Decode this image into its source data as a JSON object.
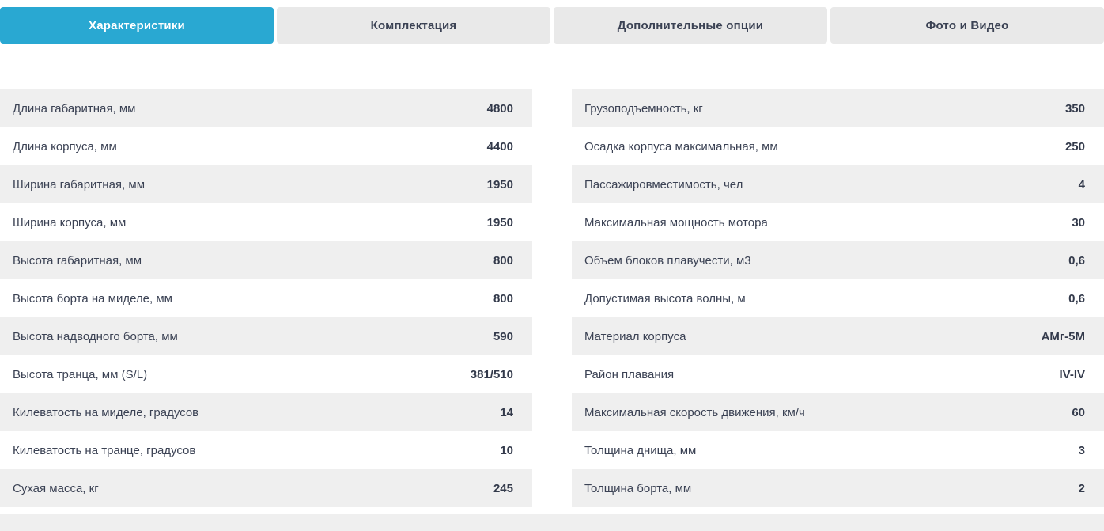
{
  "tabs": [
    {
      "label": "Характеристики",
      "active": true
    },
    {
      "label": "Комплектация",
      "active": false
    },
    {
      "label": "Дополнительные опции",
      "active": false
    },
    {
      "label": "Фото и Видео",
      "active": false
    }
  ],
  "specs": {
    "left": [
      {
        "label": "Длина габаритная, мм",
        "value": "4800"
      },
      {
        "label": "Длина корпуса, мм",
        "value": "4400"
      },
      {
        "label": "Ширина габаритная, мм",
        "value": "1950"
      },
      {
        "label": "Ширина корпуса, мм",
        "value": "1950"
      },
      {
        "label": "Высота габаритная, мм",
        "value": "800"
      },
      {
        "label": "Высота борта на миделе, мм",
        "value": "800"
      },
      {
        "label": "Высота надводного борта, мм",
        "value": "590"
      },
      {
        "label": "Высота транца, мм (S/L)",
        "value": "381/510"
      },
      {
        "label": "Килеватость на миделе, градусов",
        "value": "14"
      },
      {
        "label": "Килеватость на транце, градусов",
        "value": "10"
      },
      {
        "label": "Сухая масса, кг",
        "value": "245"
      }
    ],
    "right": [
      {
        "label": "Грузоподъемность, кг",
        "value": "350"
      },
      {
        "label": "Осадка корпуса максимальная, мм",
        "value": "250"
      },
      {
        "label": "Пассажировместимость, чел",
        "value": "4"
      },
      {
        "label": "Максимальная мощность мотора",
        "value": "30"
      },
      {
        "label": "Объем блоков плавучести, м3",
        "value": "0,6"
      },
      {
        "label": "Допустимая высота волны, м",
        "value": "0,6"
      },
      {
        "label": "Материал корпуса",
        "value": "АМг-5М"
      },
      {
        "label": "Район плавания",
        "value": "IV-IV"
      },
      {
        "label": "Максимальная скорость движения, км/ч",
        "value": "60"
      },
      {
        "label": "Толщина днища, мм",
        "value": "3"
      },
      {
        "label": "Толщина борта, мм",
        "value": "2"
      }
    ]
  },
  "colors": {
    "accent": "#29a8d2",
    "tab_inactive_bg": "#e9e9e9",
    "row_stripe": "#efefef",
    "text": "#3b4254",
    "text_strong": "#333a4b"
  }
}
